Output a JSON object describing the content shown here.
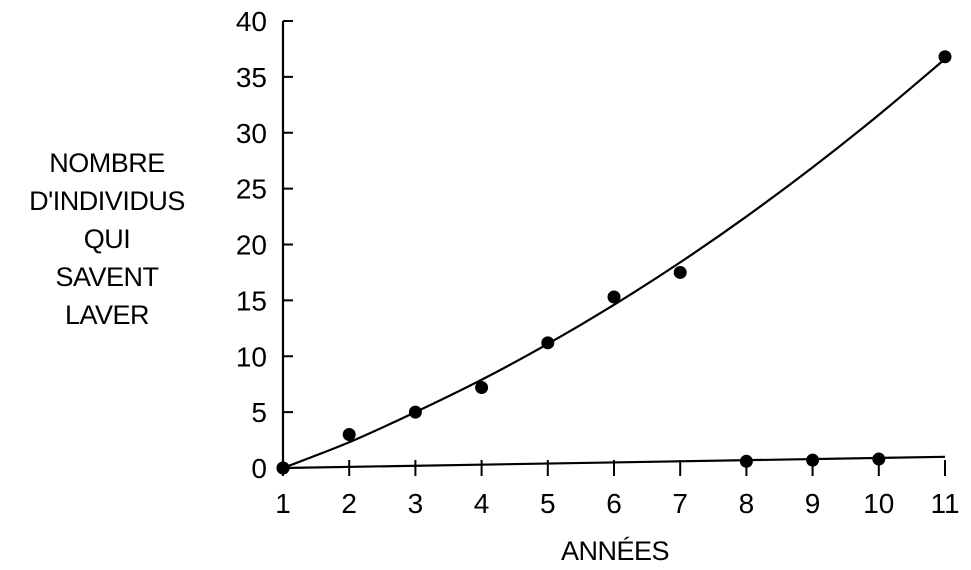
{
  "chart_data": {
    "type": "scatter",
    "title": "",
    "xlabel": "ANNÉES",
    "ylabel_lines": [
      "NOMBRE",
      "D'INDIVIDUS",
      "QUI",
      "SAVENT",
      "LAVER"
    ],
    "xlim": [
      1,
      11
    ],
    "ylim": [
      0,
      40
    ],
    "x_ticks": [
      1,
      2,
      3,
      4,
      5,
      6,
      7,
      8,
      9,
      10,
      11
    ],
    "y_ticks": [
      0,
      5,
      10,
      15,
      20,
      25,
      30,
      35,
      40
    ],
    "grid": false,
    "legend": "none",
    "series": [
      {
        "points": [
          {
            "x": 1,
            "y": 0
          },
          {
            "x": 2,
            "y": 3
          },
          {
            "x": 3,
            "y": 5
          },
          {
            "x": 4,
            "y": 7.2
          },
          {
            "x": 5,
            "y": 11.2
          },
          {
            "x": 6,
            "y": 15.3
          },
          {
            "x": 7,
            "y": 17.5
          },
          {
            "x": 11,
            "y": 36.8
          }
        ],
        "fit_curve": [
          {
            "x": 1,
            "y": 0
          },
          {
            "x": 2,
            "y": 2.3
          },
          {
            "x": 3,
            "y": 5
          },
          {
            "x": 4,
            "y": 7.9
          },
          {
            "x": 5,
            "y": 11.1
          },
          {
            "x": 6,
            "y": 14.6
          },
          {
            "x": 7,
            "y": 18.4
          },
          {
            "x": 8,
            "y": 22.5
          },
          {
            "x": 9,
            "y": 26.9
          },
          {
            "x": 10,
            "y": 31.6
          },
          {
            "x": 11,
            "y": 36.6
          }
        ]
      },
      {
        "points": [
          {
            "x": 1,
            "y": 0
          },
          {
            "x": 8,
            "y": 0.6
          },
          {
            "x": 9,
            "y": 0.7
          },
          {
            "x": 10,
            "y": 0.8
          }
        ],
        "fit_curve": [
          {
            "x": 1,
            "y": 0
          },
          {
            "x": 11,
            "y": 1
          }
        ]
      }
    ],
    "colors": {
      "ink": "#000000",
      "background": "#ffffff"
    }
  }
}
